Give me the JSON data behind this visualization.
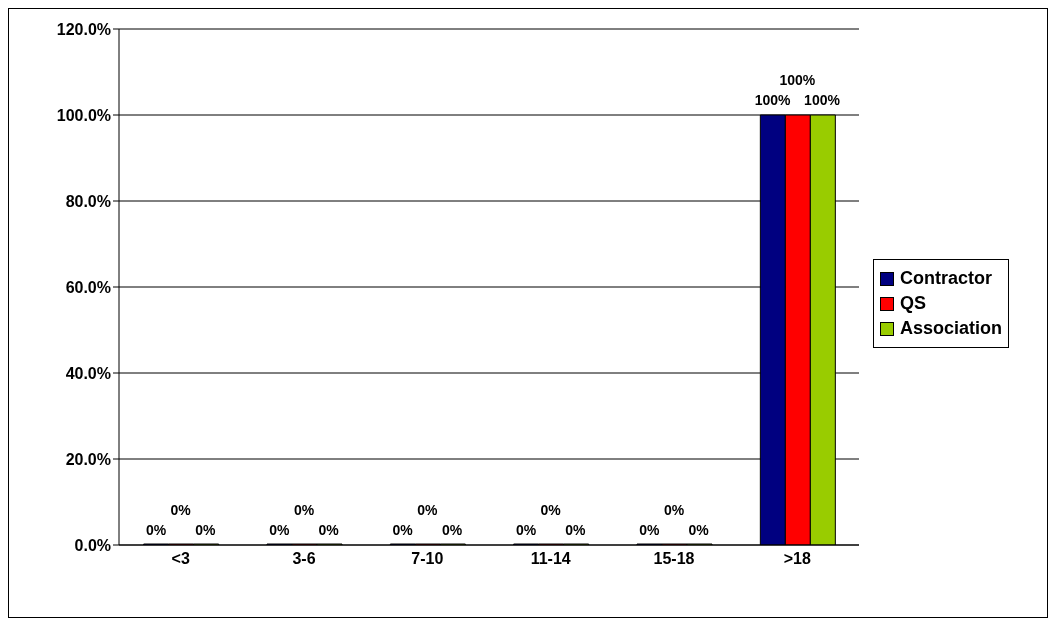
{
  "chart_data": {
    "type": "bar",
    "categories": [
      "<3",
      "3-6",
      "7-10",
      "11-14",
      "15-18",
      ">18"
    ],
    "series": [
      {
        "name": "Contractor",
        "color": "#000080",
        "values": [
          0,
          0,
          0,
          0,
          0,
          100
        ],
        "value_labels": [
          "0%",
          "0%",
          "0%",
          "0%",
          "0%",
          "100%"
        ]
      },
      {
        "name": "QS",
        "color": "#ff0000",
        "values": [
          0,
          0,
          0,
          0,
          0,
          100
        ],
        "value_labels": [
          "0%",
          "0%",
          "0%",
          "0%",
          "0%",
          "100%"
        ]
      },
      {
        "name": "Association",
        "color": "#99cc00",
        "values": [
          0,
          0,
          0,
          0,
          0,
          100
        ],
        "value_labels": [
          "0%",
          "0%",
          "0%",
          "0%",
          "0%",
          "100%"
        ]
      }
    ],
    "ylim": [
      0,
      120
    ],
    "yticks": [
      {
        "value": 0,
        "label": "0.0%"
      },
      {
        "value": 20,
        "label": "20.0%"
      },
      {
        "value": 40,
        "label": "40.0%"
      },
      {
        "value": 60,
        "label": "60.0%"
      },
      {
        "value": 80,
        "label": "80.0%"
      },
      {
        "value": 100,
        "label": "100.0%"
      },
      {
        "value": 120,
        "label": "120.0%"
      }
    ],
    "grid": "y",
    "legend": "right"
  }
}
